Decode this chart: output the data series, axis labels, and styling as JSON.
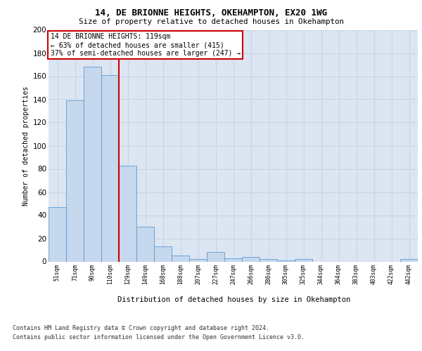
{
  "title1": "14, DE BRIONNE HEIGHTS, OKEHAMPTON, EX20 1WG",
  "title2": "Size of property relative to detached houses in Okehampton",
  "xlabel": "Distribution of detached houses by size in Okehampton",
  "ylabel": "Number of detached properties",
  "bar_labels": [
    "51sqm",
    "71sqm",
    "90sqm",
    "110sqm",
    "129sqm",
    "149sqm",
    "168sqm",
    "188sqm",
    "207sqm",
    "227sqm",
    "247sqm",
    "266sqm",
    "286sqm",
    "305sqm",
    "325sqm",
    "344sqm",
    "364sqm",
    "383sqm",
    "403sqm",
    "422sqm",
    "442sqm"
  ],
  "bar_values": [
    47,
    139,
    168,
    161,
    83,
    30,
    13,
    5,
    2,
    8,
    3,
    4,
    2,
    1,
    2,
    0,
    0,
    0,
    0,
    0,
    2
  ],
  "bar_color": "#c5d8ed",
  "bar_edge_color": "#5b9bd5",
  "red_line_bar_index": 3,
  "annotation_line1": "14 DE BRIONNE HEIGHTS: 119sqm",
  "annotation_line2": "← 63% of detached houses are smaller (415)",
  "annotation_line3": "37% of semi-detached houses are larger (247) →",
  "annotation_box_facecolor": "#ffffff",
  "annotation_box_edgecolor": "#cc0000",
  "red_line_color": "#cc0000",
  "ylim_max": 200,
  "yticks": [
    0,
    20,
    40,
    60,
    80,
    100,
    120,
    140,
    160,
    180,
    200
  ],
  "grid_color": "#c8d4e8",
  "bg_color": "#dce5f2",
  "footer1": "Contains HM Land Registry data © Crown copyright and database right 2024.",
  "footer2": "Contains public sector information licensed under the Open Government Licence v3.0."
}
